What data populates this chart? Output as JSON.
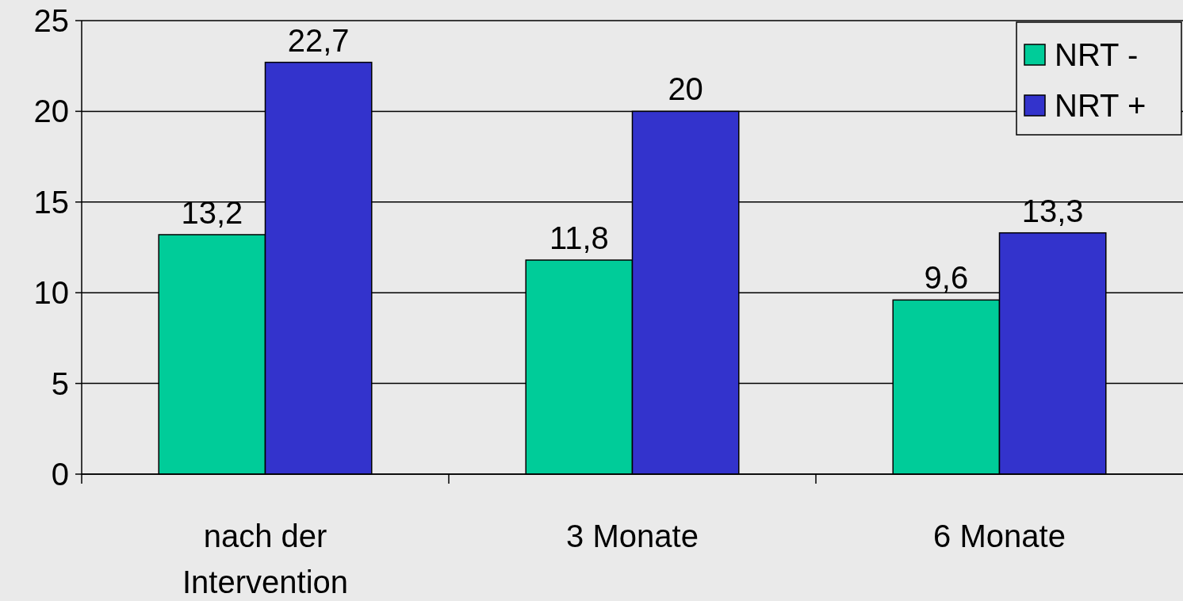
{
  "chart_data": {
    "type": "bar",
    "categories": [
      "nach der Intervention",
      "3 Monate",
      "6 Monate"
    ],
    "series": [
      {
        "name": "NRT -",
        "color": "#00cc99",
        "values": [
          13.2,
          11.8,
          9.6
        ],
        "value_labels": [
          "13,2",
          "11,8",
          "9,6"
        ]
      },
      {
        "name": "NRT +",
        "color": "#3333cc",
        "values": [
          22.7,
          20,
          13.3
        ],
        "value_labels": [
          "22,7",
          "20",
          "13,3"
        ]
      }
    ],
    "ylim": [
      0,
      25
    ],
    "yticks": [
      0,
      5,
      10,
      15,
      20,
      25
    ],
    "grid": "y",
    "legend": "top right"
  }
}
